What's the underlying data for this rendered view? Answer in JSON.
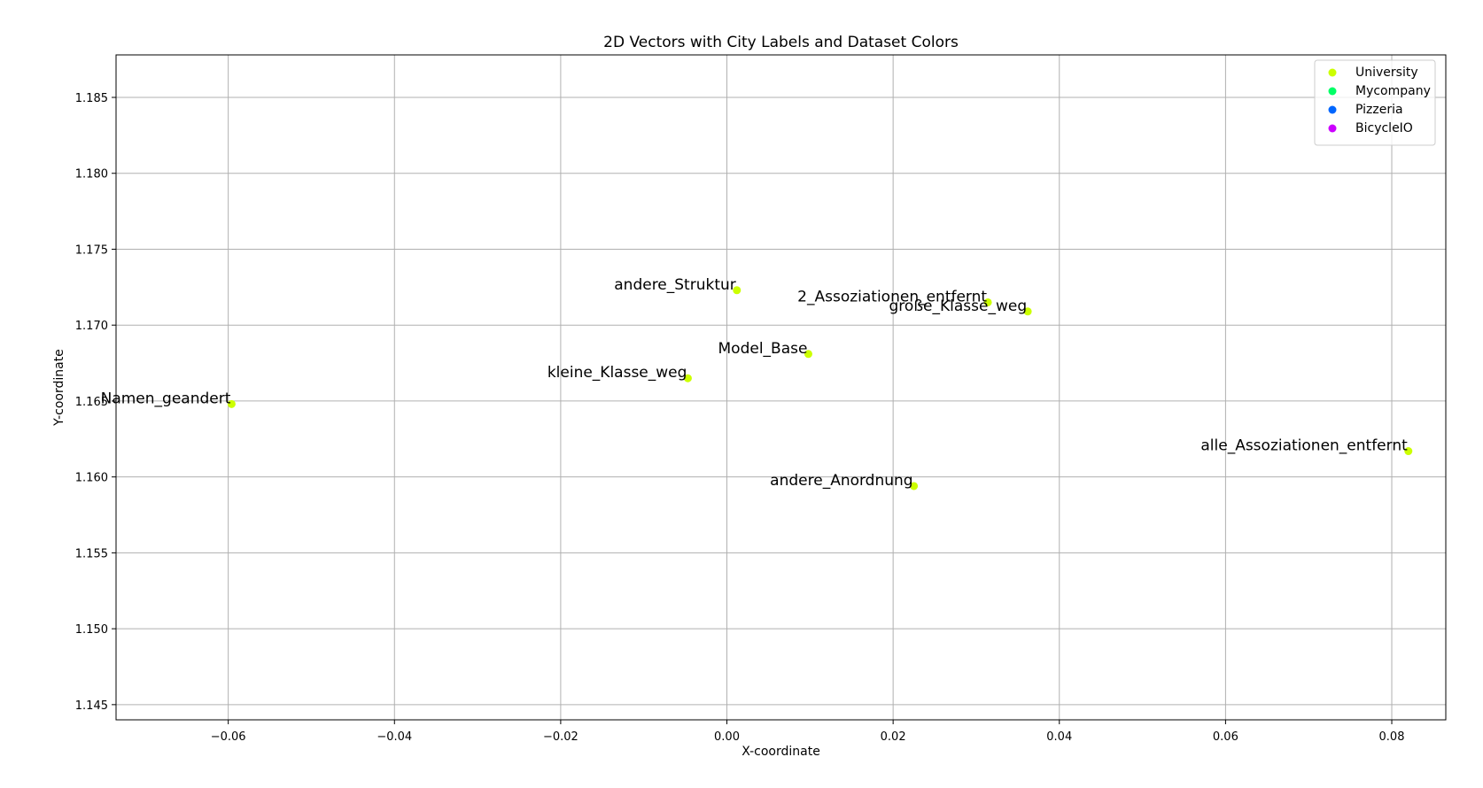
{
  "chart_data": {
    "type": "scatter",
    "title": "2D Vectors with City Labels and Dataset Colors",
    "xlabel": "X-coordinate",
    "ylabel": "Y-coordinate",
    "xlim": [
      -0.0735,
      0.0865
    ],
    "ylim": [
      1.144,
      1.1878
    ],
    "xticks": [
      -0.06,
      -0.04,
      -0.02,
      0.0,
      0.02,
      0.04,
      0.06,
      0.08
    ],
    "xtick_labels": [
      "−0.06",
      "−0.04",
      "−0.02",
      "0.00",
      "0.02",
      "0.04",
      "0.06",
      "0.08"
    ],
    "yticks": [
      1.145,
      1.15,
      1.155,
      1.16,
      1.165,
      1.17,
      1.175,
      1.18,
      1.185
    ],
    "ytick_labels": [
      "1.145",
      "1.150",
      "1.155",
      "1.160",
      "1.165",
      "1.170",
      "1.175",
      "1.180",
      "1.185"
    ],
    "grid": true,
    "legend_position": "top-right",
    "series": [
      {
        "name": "University",
        "color": "#ccff00",
        "points": [
          {
            "x": 0.0012,
            "y": 1.1723,
            "label": "andere_Struktur"
          },
          {
            "x": 0.0314,
            "y": 1.1715,
            "label": "2_Assoziationen_entfernt"
          },
          {
            "x": 0.0362,
            "y": 1.1709,
            "label": "große_Klasse_weg"
          },
          {
            "x": 0.0098,
            "y": 1.1681,
            "label": "Model_Base"
          },
          {
            "x": -0.0047,
            "y": 1.1665,
            "label": "kleine_Klasse_weg"
          },
          {
            "x": -0.0596,
            "y": 1.1648,
            "label": "Namen_geandert"
          },
          {
            "x": 0.082,
            "y": 1.1617,
            "label": "alle_Assoziationen_entfernt"
          },
          {
            "x": 0.0225,
            "y": 1.1594,
            "label": "andere_Anordnung"
          }
        ]
      },
      {
        "name": "Mycompany",
        "color": "#00ff66",
        "points": []
      },
      {
        "name": "Pizzeria",
        "color": "#0066ff",
        "points": []
      },
      {
        "name": "BicycleIO",
        "color": "#cc00ff",
        "points": []
      }
    ]
  }
}
